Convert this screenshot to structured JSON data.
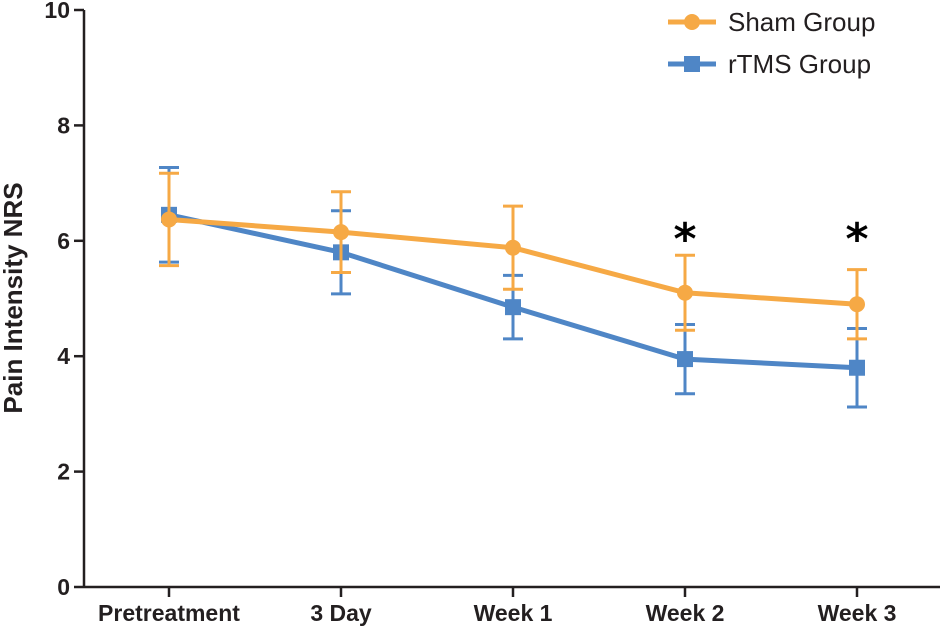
{
  "chart_data": {
    "type": "line",
    "title": "",
    "xlabel": "",
    "ylabel": "Pain Intensity NRS",
    "ylim": [
      0,
      10
    ],
    "yticks": [
      0,
      2,
      4,
      6,
      8,
      10
    ],
    "categories": [
      "Pretreatment",
      "3 Day",
      "Week 1",
      "Week 2",
      "Week 3"
    ],
    "series": [
      {
        "name": "Sham Group",
        "color": "#f6a945",
        "marker": "circle",
        "values": [
          6.37,
          6.15,
          5.88,
          5.1,
          4.9
        ],
        "error": [
          0.8,
          0.7,
          0.72,
          0.65,
          0.6
        ]
      },
      {
        "name": "rTMS Group",
        "color": "#4f86c6",
        "marker": "square",
        "values": [
          6.45,
          5.8,
          4.85,
          3.95,
          3.8
        ],
        "error": [
          0.82,
          0.72,
          0.55,
          0.6,
          0.68
        ]
      }
    ],
    "annotations": [
      {
        "category": "Week 2",
        "text": "*"
      },
      {
        "category": "Week 3",
        "text": "*"
      }
    ],
    "legend": "top-right",
    "grid": false
  }
}
